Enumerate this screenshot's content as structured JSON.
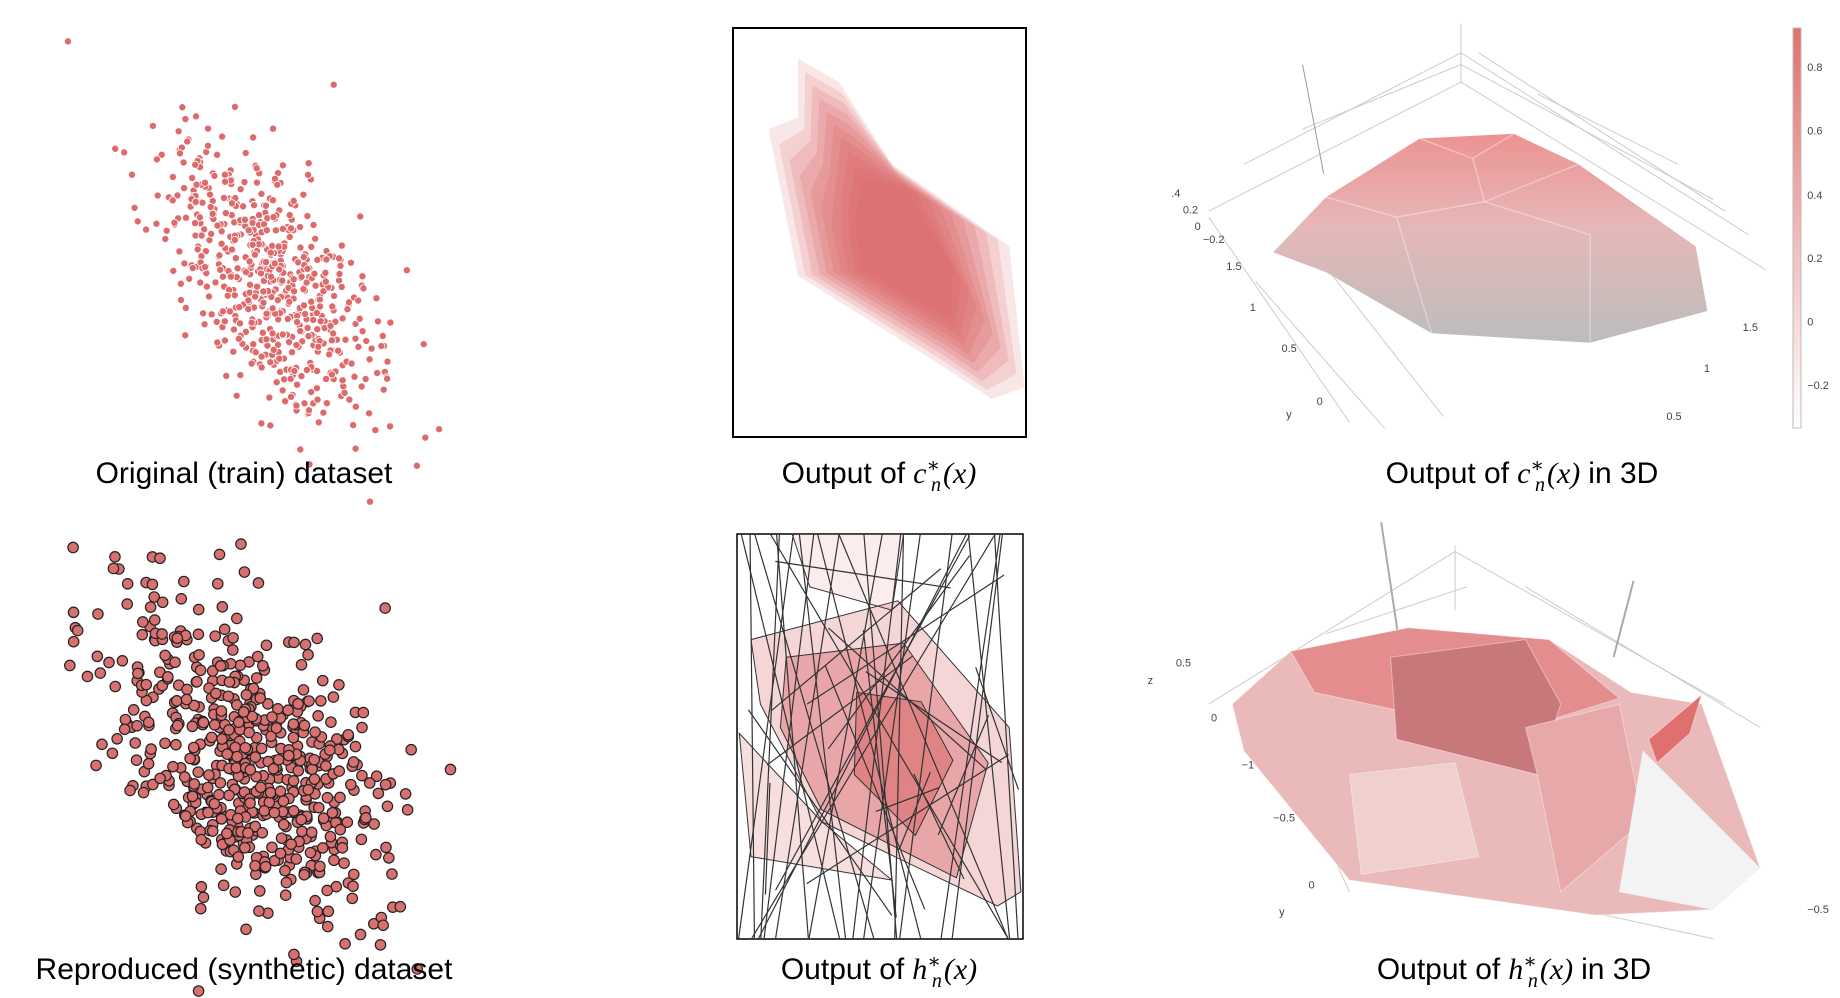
{
  "panels": [
    {
      "caption": {
        "prefix": "Original (train) dataset"
      }
    },
    {
      "caption": {
        "prefix": "Output of",
        "symbol": "c",
        "superscript": "∗",
        "subscript": "n",
        "argument": "(x)"
      }
    },
    {
      "caption": {
        "prefix": "Output of",
        "symbol": "c",
        "superscript": "∗",
        "subscript": "n",
        "argument": "(x)",
        "suffix": "in 3D"
      },
      "axis_labels": [
        ".4",
        "0.2",
        "0",
        "−0.2",
        "1.5",
        "1",
        "0.5",
        "0",
        "y",
        "1.5",
        "1",
        "0.5"
      ],
      "colorbar_labels": [
        "0.8",
        "0.6",
        "0.4",
        "0.2",
        "0",
        "−0.2"
      ]
    },
    {
      "caption": {
        "prefix": "Reproduced (synthetic) dataset"
      }
    },
    {
      "caption": {
        "prefix": "Output of",
        "symbol": "h",
        "superscript": "∗",
        "subscript": "n",
        "argument": "(x)"
      }
    },
    {
      "caption": {
        "prefix": "Output of",
        "symbol": "h",
        "superscript": "∗",
        "subscript": "n",
        "argument": "(x)",
        "suffix": "in 3D"
      },
      "axis_labels": [
        "z",
        "0.5",
        "0",
        "−1",
        "−0.5",
        "0",
        "y",
        "−0.5"
      ]
    }
  ]
}
